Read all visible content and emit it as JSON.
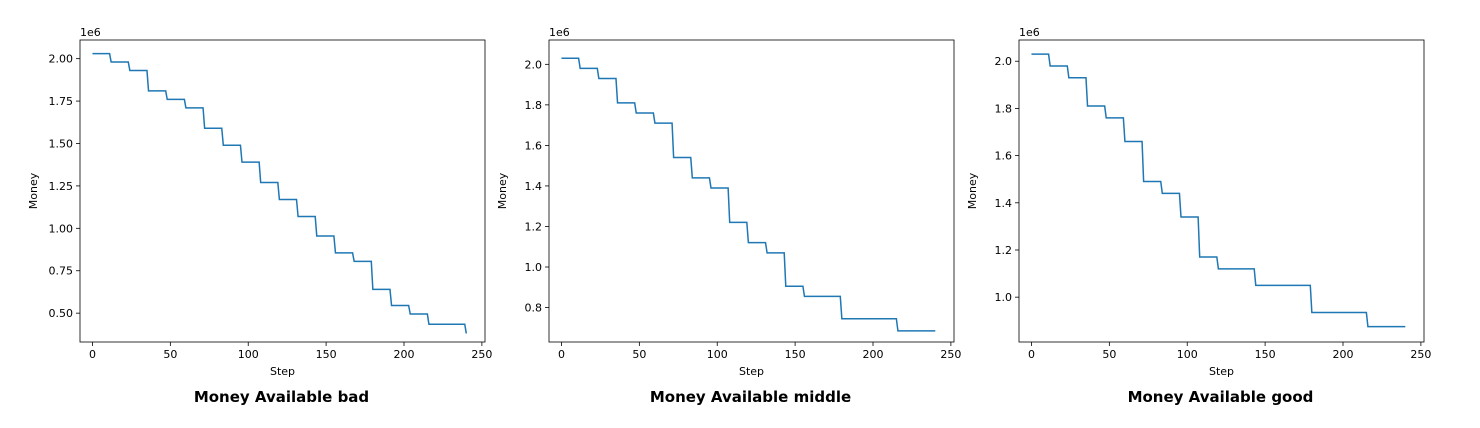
{
  "chart_data": [
    {
      "type": "line",
      "title": "Money Available bad",
      "xlabel": "Step",
      "ylabel": "Money",
      "y_scale_label": "1e6",
      "xlim": [
        -8,
        252
      ],
      "ylim": [
        0.33,
        2.11
      ],
      "xticks": [
        0,
        50,
        100,
        150,
        200,
        250
      ],
      "yticks": [
        0.5,
        0.75,
        1.0,
        1.25,
        1.5,
        1.75,
        2.0
      ],
      "ytick_labels": [
        "0.50",
        "0.75",
        "1.00",
        "1.25",
        "1.50",
        "1.75",
        "2.00"
      ],
      "grid": false,
      "color": "#1f77b4",
      "series": [
        {
          "x": [
            0,
            11,
            12,
            23,
            24,
            35,
            36,
            47,
            48,
            59,
            60,
            71,
            72,
            83,
            84,
            95,
            96,
            107,
            108,
            119,
            120,
            131,
            132,
            143,
            144,
            155,
            156,
            167,
            168,
            179,
            180,
            191,
            192,
            203,
            204,
            215,
            216,
            239,
            240
          ],
          "y": [
            2.03,
            2.03,
            1.98,
            1.98,
            1.93,
            1.93,
            1.81,
            1.81,
            1.76,
            1.76,
            1.71,
            1.71,
            1.59,
            1.59,
            1.49,
            1.49,
            1.39,
            1.39,
            1.27,
            1.27,
            1.17,
            1.17,
            1.07,
            1.07,
            0.955,
            0.955,
            0.855,
            0.855,
            0.805,
            0.805,
            0.64,
            0.64,
            0.545,
            0.545,
            0.495,
            0.495,
            0.435,
            0.435,
            0.38
          ]
        }
      ]
    },
    {
      "type": "line",
      "title": "Money Available middle",
      "xlabel": "Step",
      "ylabel": "Money",
      "y_scale_label": "1e6",
      "xlim": [
        -8,
        252
      ],
      "ylim": [
        0.63,
        2.12
      ],
      "xticks": [
        0,
        50,
        100,
        150,
        200,
        250
      ],
      "yticks": [
        0.8,
        1.0,
        1.2,
        1.4,
        1.6,
        1.8,
        2.0
      ],
      "ytick_labels": [
        "0.8",
        "1.0",
        "1.2",
        "1.4",
        "1.6",
        "1.8",
        "2.0"
      ],
      "grid": false,
      "color": "#1f77b4",
      "series": [
        {
          "x": [
            0,
            11,
            12,
            23,
            24,
            35,
            36,
            47,
            48,
            59,
            60,
            71,
            72,
            83,
            84,
            95,
            96,
            107,
            108,
            119,
            120,
            131,
            132,
            143,
            144,
            155,
            156,
            179,
            180,
            215,
            216,
            240
          ],
          "y": [
            2.03,
            2.03,
            1.98,
            1.98,
            1.93,
            1.93,
            1.81,
            1.81,
            1.76,
            1.76,
            1.71,
            1.71,
            1.54,
            1.54,
            1.44,
            1.44,
            1.39,
            1.39,
            1.22,
            1.22,
            1.12,
            1.12,
            1.07,
            1.07,
            0.905,
            0.905,
            0.855,
            0.855,
            0.745,
            0.745,
            0.685,
            0.685
          ]
        }
      ]
    },
    {
      "type": "line",
      "title": "Money Available good",
      "xlabel": "Step",
      "ylabel": "Money",
      "y_scale_label": "1e6",
      "xlim": [
        -8,
        252
      ],
      "ylim": [
        0.81,
        2.09
      ],
      "xticks": [
        0,
        50,
        100,
        150,
        200,
        250
      ],
      "yticks": [
        1.0,
        1.2,
        1.4,
        1.6,
        1.8,
        2.0
      ],
      "ytick_labels": [
        "1.0",
        "1.2",
        "1.4",
        "1.6",
        "1.8",
        "2.0"
      ],
      "grid": false,
      "color": "#1f77b4",
      "series": [
        {
          "x": [
            0,
            11,
            12,
            23,
            24,
            35,
            36,
            47,
            48,
            59,
            60,
            71,
            72,
            83,
            84,
            95,
            96,
            107,
            108,
            119,
            120,
            143,
            144,
            179,
            180,
            215,
            216,
            240
          ],
          "y": [
            2.03,
            2.03,
            1.98,
            1.98,
            1.93,
            1.93,
            1.81,
            1.81,
            1.76,
            1.76,
            1.66,
            1.66,
            1.49,
            1.49,
            1.44,
            1.44,
            1.34,
            1.34,
            1.17,
            1.17,
            1.12,
            1.12,
            1.05,
            1.05,
            0.935,
            0.935,
            0.875,
            0.875
          ]
        }
      ]
    }
  ]
}
